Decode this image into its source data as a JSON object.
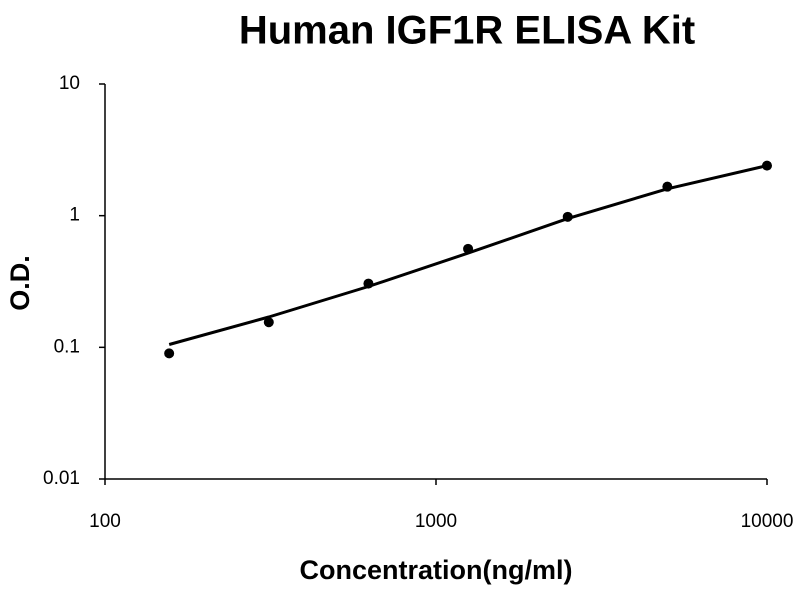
{
  "chart_data": {
    "type": "scatter",
    "title": "Human IGF1R ELISA Kit",
    "x_label": "Concentration(ng/ml)",
    "y_label": "O.D.",
    "x": [
      156.25,
      312.5,
      625,
      1250,
      2500,
      5000,
      10000
    ],
    "series": [
      {
        "color": "#000000",
        "values": [
          0.09,
          0.155,
          0.305,
          0.56,
          0.98,
          1.66,
          2.4
        ]
      }
    ],
    "fit": {
      "color": "#000000",
      "x": [
        156.25,
        312.5,
        625,
        1250,
        2500,
        5000,
        10000
      ],
      "values": [
        0.105,
        0.17,
        0.29,
        0.52,
        0.95,
        1.6,
        2.4
      ]
    },
    "xlim": [
      100,
      10000
    ],
    "ylim": [
      0.01,
      10
    ],
    "xticks": [
      100,
      1000,
      10000
    ],
    "yticks": [
      0.01,
      0.1,
      1,
      10
    ],
    "xscale": "log",
    "yscale": "log",
    "grid": false
  }
}
